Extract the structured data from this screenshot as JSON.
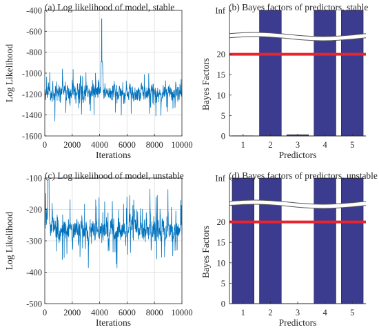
{
  "chart_data": [
    {
      "id": "a",
      "type": "line",
      "title": "(a) Log likelihood of model, stable",
      "xlabel": "Iterations",
      "ylabel": "Log Likelihood",
      "xlim": [
        0,
        10000
      ],
      "ylim": [
        -1600,
        -400
      ],
      "xticks": [
        0,
        2000,
        4000,
        6000,
        8000,
        10000
      ],
      "yticks": [
        -1600,
        -1400,
        -1200,
        -1000,
        -800,
        -600,
        -400
      ],
      "grid": true,
      "color": "#0072BD",
      "trace": {
        "mean": -1190,
        "spread": 70,
        "min": -1460,
        "max": -890,
        "spike_at": 4150,
        "spike_peak": -480
      }
    },
    {
      "id": "b",
      "type": "bar",
      "title": "(b) Bayes factors of predictors, stable",
      "xlabel": "Predictors",
      "ylabel": "Bayes Factors",
      "categories": [
        "1",
        "2",
        "3",
        "4",
        "5"
      ],
      "values": [
        0.05,
        "Inf",
        0.3,
        "Inf",
        "Inf"
      ],
      "ylim": [
        0,
        "Inf"
      ],
      "yticks": [
        "0",
        "5",
        "10",
        "15",
        "20",
        "Inf"
      ],
      "threshold": 20,
      "bar_color": "#3B3B8F",
      "threshold_color": "#E8252F",
      "grid": false
    },
    {
      "id": "c",
      "type": "line",
      "title": "(c) Log likelihood of model, unstable",
      "xlabel": "Iterations",
      "ylabel": "Log Likelihood",
      "xlim": [
        0,
        10000
      ],
      "ylim": [
        -500,
        -100
      ],
      "xticks": [
        0,
        2000,
        4000,
        6000,
        8000,
        10000
      ],
      "yticks": [
        -500,
        -400,
        -300,
        -200,
        -100
      ],
      "grid": true,
      "color": "#0072BD",
      "trace": {
        "mean": -265,
        "spread": 32,
        "min": -405,
        "max": -105
      }
    },
    {
      "id": "d",
      "type": "bar",
      "title": "(d) Bayes factors of predictors, unstable",
      "xlabel": "Predictors",
      "ylabel": "Bayes Factors",
      "categories": [
        "1",
        "2",
        "3",
        "4",
        "5"
      ],
      "values": [
        "Inf",
        "Inf",
        0,
        "Inf",
        "Inf"
      ],
      "ylim": [
        0,
        "Inf"
      ],
      "yticks": [
        "0",
        "5",
        "10",
        "15",
        "20",
        "Inf"
      ],
      "threshold": 20,
      "bar_color": "#3B3B8F",
      "threshold_color": "#E8252F",
      "grid": false
    }
  ]
}
